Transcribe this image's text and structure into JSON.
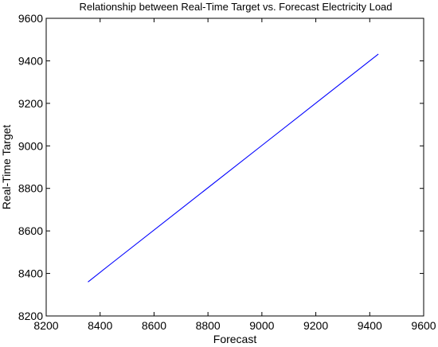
{
  "chart_data": {
    "type": "line",
    "title": "Relationship between Real-Time Target vs. Forecast Electricity Load",
    "xlabel": "Forecast",
    "ylabel": "Real-Time Target",
    "xlim": [
      8200,
      9600
    ],
    "ylim": [
      8200,
      9600
    ],
    "xticks": [
      8200,
      8400,
      8600,
      8800,
      9000,
      9200,
      9400,
      9600
    ],
    "yticks": [
      8200,
      8400,
      8600,
      8800,
      9000,
      9200,
      9400,
      9600
    ],
    "grid": false,
    "series": [
      {
        "color": "#0000ff",
        "x": [
          8355,
          8450,
          9000,
          9432
        ],
        "y": [
          8360,
          8455,
          9002,
          9432
        ]
      }
    ]
  }
}
